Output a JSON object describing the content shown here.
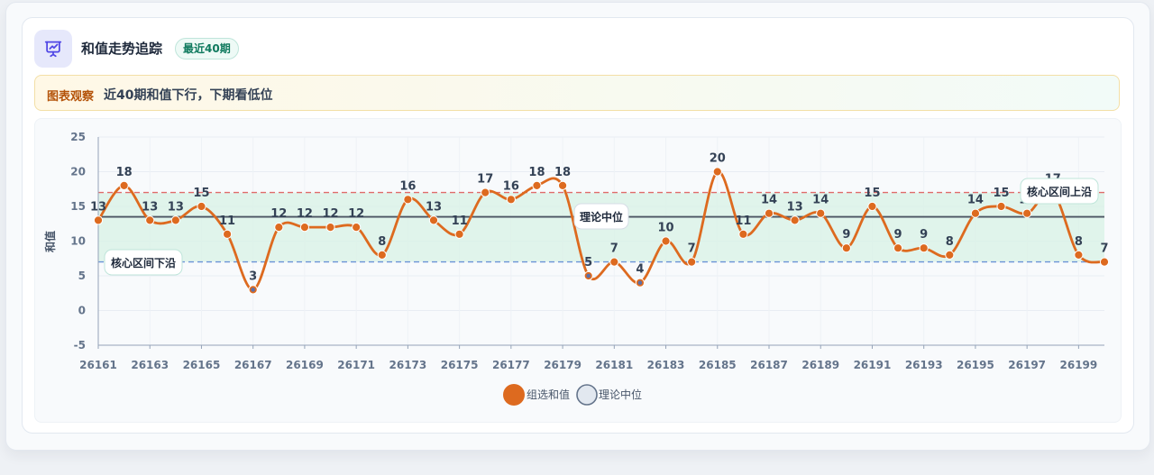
{
  "header": {
    "title": "和值走势追踪",
    "badge": "最近40期",
    "icon": "presentation-chart-icon"
  },
  "observation": {
    "label": "图表观察",
    "text": "近40期和值下行，下期看低位"
  },
  "colors": {
    "line": "#dd6a1f",
    "point_low": "#5b6fa8",
    "median_line": "#4b5563",
    "upper_line": "#e06b6b",
    "lower_line": "#6b93d6",
    "band": "#d8f1e6",
    "accent": "#6366f1"
  },
  "chart_data": {
    "type": "line",
    "ylabel": "和值",
    "ylim": [
      -5,
      25
    ],
    "yticks": [
      -5,
      0,
      5,
      10,
      15,
      20,
      25
    ],
    "x": [
      26161,
      26162,
      26163,
      26164,
      26165,
      26166,
      26167,
      26168,
      26169,
      26170,
      26171,
      26172,
      26173,
      26174,
      26175,
      26176,
      26177,
      26178,
      26179,
      26180,
      26181,
      26182,
      26183,
      26184,
      26185,
      26186,
      26187,
      26188,
      26189,
      26190,
      26191,
      26192,
      26193,
      26194,
      26195,
      26196,
      26197,
      26198,
      26199,
      26200
    ],
    "xticks": [
      "26161",
      "26163",
      "26165",
      "26167",
      "26169",
      "26171",
      "26173",
      "26175",
      "26177",
      "26179",
      "26181",
      "26183",
      "26185",
      "26187",
      "26189",
      "26191",
      "26193",
      "26195",
      "26197",
      "26199"
    ],
    "series": [
      {
        "name": "组选和值",
        "values": [
          13,
          18,
          13,
          13,
          15,
          11,
          3,
          12,
          12,
          12,
          12,
          8,
          16,
          13,
          11,
          17,
          16,
          18,
          18,
          5,
          7,
          4,
          10,
          7,
          20,
          11,
          14,
          13,
          14,
          9,
          15,
          9,
          9,
          8,
          14,
          15,
          14,
          17,
          8,
          7
        ]
      }
    ],
    "reference_lines": [
      {
        "name": "理论中位",
        "value": 13.5,
        "style": "solid"
      },
      {
        "name": "核心区间上沿",
        "value": 17,
        "style": "dashed"
      },
      {
        "name": "核心区间下沿",
        "value": 7,
        "style": "dashed"
      }
    ],
    "band": [
      7,
      17
    ],
    "legend": [
      "组选和值",
      "理论中位"
    ],
    "legend_position": "bottom",
    "grid": true
  }
}
